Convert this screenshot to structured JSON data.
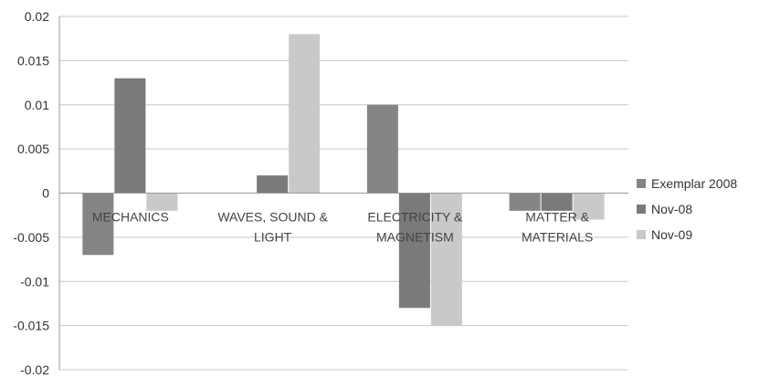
{
  "chart_data": {
    "type": "bar",
    "categories": [
      [
        "MECHANICS"
      ],
      [
        "WAVES, SOUND &",
        "LIGHT"
      ],
      [
        "ELECTRICITY &",
        "MAGNETISM"
      ],
      [
        "MATTER &",
        "MATERIALS"
      ]
    ],
    "series": [
      {
        "name": "Exemplar 2008",
        "color": "#858585",
        "values": [
          -0.007,
          0,
          0.01,
          -0.002
        ]
      },
      {
        "name": "Nov-08",
        "color": "#7a7a7a",
        "values": [
          0.013,
          0.002,
          -0.013,
          -0.002
        ]
      },
      {
        "name": "Nov-09",
        "color": "#c9c9c9",
        "values": [
          -0.002,
          0.018,
          -0.015,
          -0.003
        ]
      }
    ],
    "ylim": [
      -0.02,
      0.02
    ],
    "yticks": [
      0.02,
      0.015,
      0.01,
      0.005,
      0,
      -0.005,
      -0.01,
      -0.015,
      -0.02
    ],
    "ytick_labels": [
      "0.02",
      "0.015",
      "0.01",
      "0.005",
      "0",
      "-0.005",
      "-0.01",
      "-0.015",
      "-0.02"
    ],
    "grid": true,
    "legend_position": "right",
    "title": "",
    "xlabel": "",
    "ylabel": ""
  }
}
